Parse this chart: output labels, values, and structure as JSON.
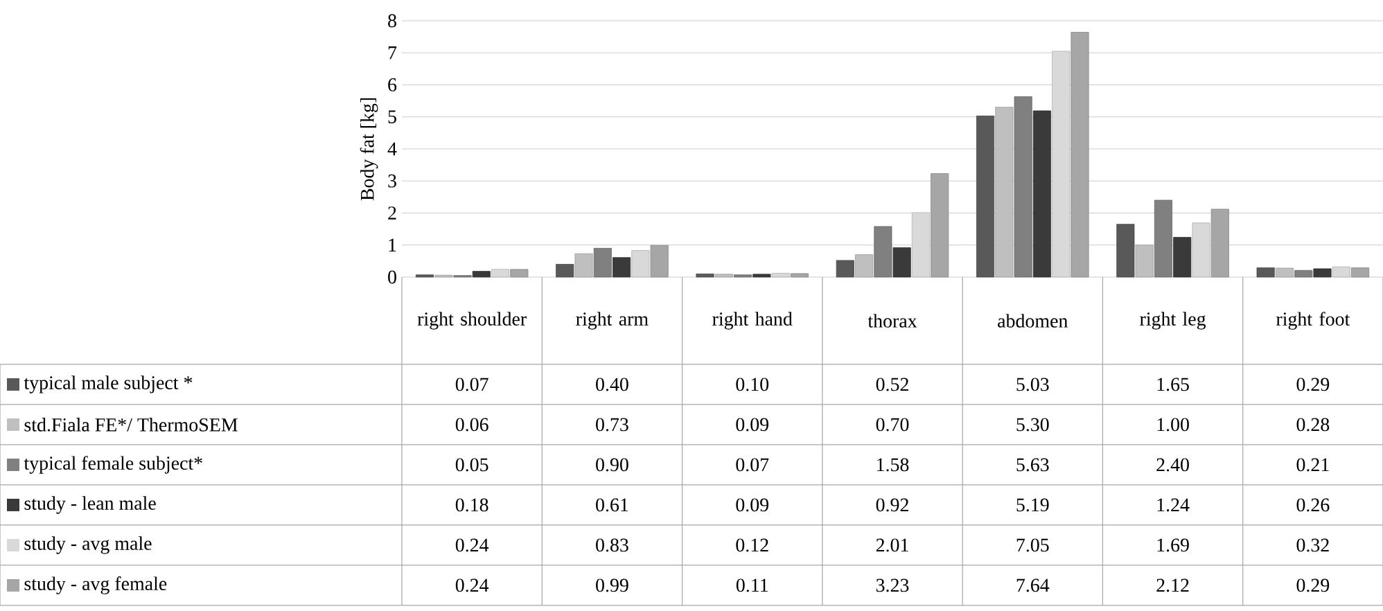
{
  "chart_data": {
    "type": "bar",
    "ylabel": "Body fat [kg]",
    "categories": [
      "right shoulder",
      "right arm",
      "right hand",
      "thorax",
      "abdomen",
      "right leg",
      "right foot"
    ],
    "series": [
      {
        "name": "typical male subject *",
        "color": "#595959",
        "values": [
          0.07,
          0.4,
          0.1,
          0.52,
          5.03,
          1.65,
          0.29
        ],
        "value_labels": [
          "0.07",
          "0.40",
          "0.10",
          "0.52",
          "5.03",
          "1.65",
          "0.29"
        ]
      },
      {
        "name": "std.Fiala FE*/ ThermoSEM",
        "color": "#bfbfbf",
        "values": [
          0.06,
          0.73,
          0.09,
          0.7,
          5.3,
          1.0,
          0.28
        ],
        "value_labels": [
          "0.06",
          "0.73",
          "0.09",
          "0.70",
          "5.30",
          "1.00",
          "0.28"
        ]
      },
      {
        "name": "typical female subject*",
        "color": "#808080",
        "values": [
          0.05,
          0.9,
          0.07,
          1.58,
          5.63,
          2.4,
          0.21
        ],
        "value_labels": [
          "0.05",
          "0.90",
          "0.07",
          "1.58",
          "5.63",
          "2.40",
          "0.21"
        ]
      },
      {
        "name": "study - lean male",
        "color": "#3a3a3a",
        "values": [
          0.18,
          0.61,
          0.09,
          0.92,
          5.19,
          1.24,
          0.26
        ],
        "value_labels": [
          "0.18",
          "0.61",
          "0.09",
          "0.92",
          "5.19",
          "1.24",
          "0.26"
        ]
      },
      {
        "name": "study - avg male",
        "color": "#d9d9d9",
        "values": [
          0.24,
          0.83,
          0.12,
          2.01,
          7.05,
          1.69,
          0.32
        ],
        "value_labels": [
          "0.24",
          "0.83",
          "0.12",
          "2.01",
          "7.05",
          "1.69",
          "0.32"
        ]
      },
      {
        "name": "study - avg female",
        "color": "#a6a6a6",
        "values": [
          0.24,
          0.99,
          0.11,
          3.23,
          7.64,
          2.12,
          0.29
        ],
        "value_labels": [
          "0.24",
          "0.99",
          "0.11",
          "3.23",
          "7.64",
          "2.12",
          "0.29"
        ]
      }
    ],
    "ylim": [
      0,
      8
    ],
    "yticks": [
      0,
      1,
      2,
      3,
      4,
      5,
      6,
      7,
      8
    ],
    "grid": "y",
    "legend": "bottom left"
  }
}
